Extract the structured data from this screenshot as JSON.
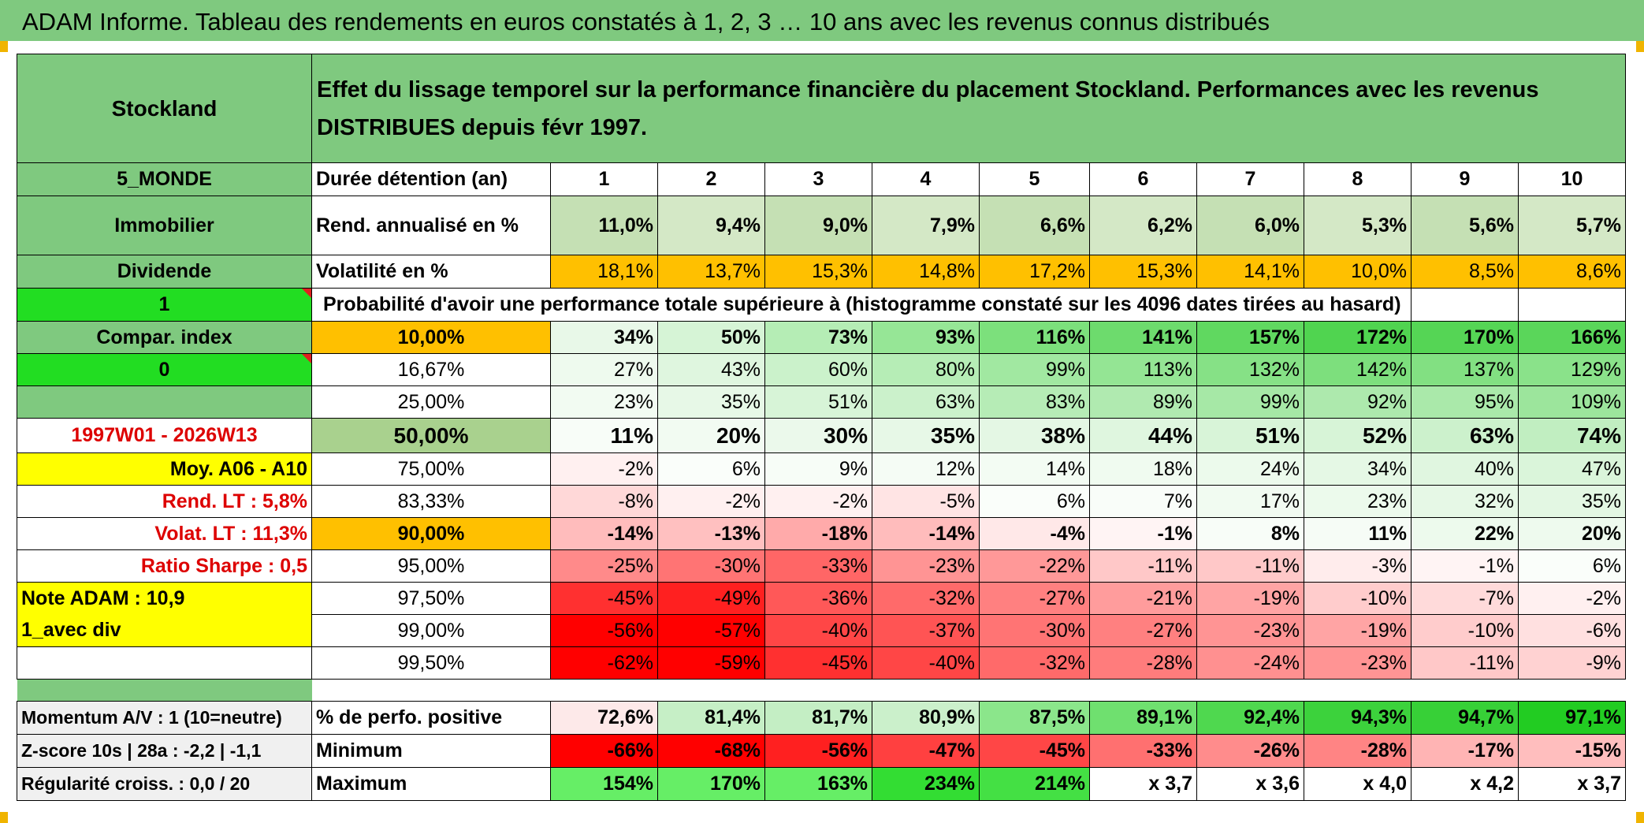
{
  "title": "ADAM Informe. Tableau des rendements en euros constatés à 1, 2, 3 … 10 ans avec les revenus connus distribués",
  "left_labels": {
    "fund": "Stockland",
    "region": "5_MONDE",
    "sector": "Immobilier",
    "type": "Dividende",
    "flag1": "1",
    "compar": "Compar. index",
    "flag0": "0",
    "period": "1997W01 - 2026W13",
    "moy": "Moy. A06 - A10",
    "rend_lt": "Rend. LT :   5,8%",
    "volat_lt": "Volat. LT :   11,3%",
    "sharpe": "Ratio Sharpe :   0,5",
    "note": "Note ADAM : 10,9",
    "avec_div": "1_avec div",
    "momentum": "Momentum A/V : 1 (10=neutre)",
    "zscore": "Z-score 10s | 28a : -2,2 | -1,1",
    "regularite": "Régularité croiss. : 0,0 / 20"
  },
  "header_text": "Effet du lissage temporel sur la performance financière du placement Stockland. Performances avec les revenus DISTRIBUES depuis févr 1997.",
  "row_labels": {
    "duree": "Durée détention (an)",
    "rend": "Rend. annualisé en %",
    "volat": "Volatilité en %",
    "proba": "Probabilité d'avoir une performance totale supérieure à (histogramme constaté sur les 4096 dates tirées au hasard)",
    "pos": "% de perfo. positive",
    "min": "Minimum",
    "max": "Maximum"
  },
  "years": [
    "1",
    "2",
    "3",
    "4",
    "5",
    "6",
    "7",
    "8",
    "9",
    "10"
  ],
  "rend": [
    "11,0%",
    "9,4%",
    "9,0%",
    "7,9%",
    "6,6%",
    "6,2%",
    "6,0%",
    "5,3%",
    "5,6%",
    "5,7%"
  ],
  "volat": [
    "18,1%",
    "13,7%",
    "15,3%",
    "14,8%",
    "17,2%",
    "15,3%",
    "14,1%",
    "10,0%",
    "8,5%",
    "8,6%"
  ],
  "volat_colors": [
    "#ffc000",
    "#ffc000",
    "#ffc000",
    "#ffc000",
    "#ffc000",
    "#ffc000",
    "#ffc000",
    "#ffc000",
    "#ffc000",
    "#ffc000"
  ],
  "prob_rows": [
    {
      "pct": "10,00%",
      "bold": true,
      "label_bg": "#ffc000",
      "values": [
        "34%",
        "50%",
        "73%",
        "93%",
        "116%",
        "141%",
        "157%",
        "172%",
        "170%",
        "166%"
      ],
      "colors": [
        "#e8f8e8",
        "#d6f4d6",
        "#b5edb5",
        "#96e696",
        "#7ce07c",
        "#6ddb6d",
        "#60d860",
        "#50d450",
        "#55d555",
        "#5ad65a"
      ]
    },
    {
      "pct": "16,67%",
      "bold": false,
      "label_bg": "#ffffff",
      "values": [
        "27%",
        "43%",
        "60%",
        "80%",
        "99%",
        "113%",
        "132%",
        "142%",
        "137%",
        "129%"
      ],
      "colors": [
        "#eefaee",
        "#dff6df",
        "#cbf2cb",
        "#b6edb6",
        "#a1e8a1",
        "#94e594",
        "#86e186",
        "#7ddf7d",
        "#82e082",
        "#8ae28a"
      ]
    },
    {
      "pct": "25,00%",
      "bold": false,
      "label_bg": "#ffffff",
      "values": [
        "23%",
        "35%",
        "51%",
        "63%",
        "83%",
        "89%",
        "99%",
        "92%",
        "95%",
        "109%"
      ],
      "colors": [
        "#f2fbf2",
        "#e7f8e7",
        "#d7f4d7",
        "#cbf1cb",
        "#b6ecb6",
        "#b0eab0",
        "#a6e8a6",
        "#ade9ad",
        "#aae9aa",
        "#9ce59c"
      ]
    },
    {
      "pct": "50,00%",
      "bold": true,
      "big": true,
      "label_bg": "#a9d18e",
      "values": [
        "11%",
        "20%",
        "30%",
        "35%",
        "38%",
        "44%",
        "51%",
        "52%",
        "63%",
        "74%"
      ],
      "colors": [
        "#f8fdf8",
        "#f2fbf2",
        "#ebf9eb",
        "#e7f8e7",
        "#e4f7e4",
        "#dff6df",
        "#d8f4d8",
        "#d7f4d7",
        "#ccf1cc",
        "#c1eec1"
      ]
    },
    {
      "pct": "75,00%",
      "bold": false,
      "label_bg": "#ffffff",
      "values": [
        "-2%",
        "6%",
        "9%",
        "12%",
        "14%",
        "18%",
        "24%",
        "34%",
        "40%",
        "47%"
      ],
      "colors": [
        "#fff0f0",
        "#fafefa",
        "#f7fdf7",
        "#f5fcf5",
        "#f3fcf3",
        "#f0fbf0",
        "#ecfaec",
        "#e5f8e5",
        "#e0f6e0",
        "#daf5da"
      ]
    },
    {
      "pct": "83,33%",
      "bold": false,
      "label_bg": "#ffffff",
      "values": [
        "-8%",
        "-2%",
        "-2%",
        "-5%",
        "6%",
        "7%",
        "17%",
        "23%",
        "32%",
        "35%"
      ],
      "colors": [
        "#ffd8d8",
        "#fff0f0",
        "#fff0f0",
        "#ffe4e4",
        "#fafefa",
        "#f9fdf9",
        "#f1fbf1",
        "#ecfaec",
        "#e6f8e6",
        "#e3f7e3"
      ]
    },
    {
      "pct": "90,00%",
      "bold": true,
      "label_bg": "#ffc000",
      "values": [
        "-14%",
        "-13%",
        "-18%",
        "-14%",
        "-4%",
        "-1%",
        "8%",
        "11%",
        "22%",
        "20%"
      ],
      "colors": [
        "#ffbcbc",
        "#ffc0c0",
        "#ffaaaa",
        "#ffbcbc",
        "#ffe8e8",
        "#fff4f4",
        "#f8fdf8",
        "#f6fcf6",
        "#edfaed",
        "#eefaee"
      ]
    },
    {
      "pct": "95,00%",
      "bold": false,
      "label_bg": "#ffffff",
      "values": [
        "-25%",
        "-30%",
        "-33%",
        "-23%",
        "-22%",
        "-11%",
        "-11%",
        "-3%",
        "-1%",
        "6%"
      ],
      "colors": [
        "#ff8a8a",
        "#ff7474",
        "#ff6666",
        "#ff9494",
        "#ff9898",
        "#ffc8c8",
        "#ffc8c8",
        "#ffecec",
        "#fff4f4",
        "#fafefa"
      ]
    },
    {
      "pct": "97,50%",
      "bold": false,
      "label_bg": "#ffffff",
      "values": [
        "-45%",
        "-49%",
        "-36%",
        "-32%",
        "-27%",
        "-21%",
        "-19%",
        "-10%",
        "-7%",
        "-2%"
      ],
      "colors": [
        "#ff3030",
        "#ff2020",
        "#ff5858",
        "#ff6a6a",
        "#ff8080",
        "#ff9c9c",
        "#ffa4a4",
        "#ffcccc",
        "#ffdada",
        "#fff0f0"
      ]
    },
    {
      "pct": "99,00%",
      "bold": false,
      "label_bg": "#ffffff",
      "values": [
        "-56%",
        "-57%",
        "-40%",
        "-37%",
        "-30%",
        "-27%",
        "-23%",
        "-19%",
        "-10%",
        "-6%"
      ],
      "colors": [
        "#ff0000",
        "#ff0000",
        "#ff4646",
        "#ff5454",
        "#ff7474",
        "#ff8080",
        "#ff9494",
        "#ffa4a4",
        "#ffcccc",
        "#ffe0e0"
      ]
    },
    {
      "pct": "99,50%",
      "bold": false,
      "label_bg": "#ffffff",
      "values": [
        "-62%",
        "-59%",
        "-45%",
        "-40%",
        "-32%",
        "-28%",
        "-24%",
        "-23%",
        "-11%",
        "-9%"
      ],
      "colors": [
        "#ff0000",
        "#ff0000",
        "#ff3030",
        "#ff4646",
        "#ff6a6a",
        "#ff7c7c",
        "#ff9090",
        "#ff9494",
        "#ffc8c8",
        "#ffd2d2"
      ]
    }
  ],
  "pos": [
    "72,6%",
    "81,4%",
    "81,7%",
    "80,9%",
    "87,5%",
    "89,1%",
    "92,4%",
    "94,3%",
    "94,7%",
    "97,1%"
  ],
  "pos_colors": [
    "#fde9e9",
    "#c6efc6",
    "#c4eec4",
    "#cbf0cb",
    "#8be68b",
    "#6fe06f",
    "#4fd84f",
    "#3cd23c",
    "#37d037",
    "#22cc22"
  ],
  "min": [
    "-66%",
    "-68%",
    "-56%",
    "-47%",
    "-45%",
    "-33%",
    "-26%",
    "-28%",
    "-17%",
    "-15%"
  ],
  "min_colors": [
    "#ff0000",
    "#ff0000",
    "#ff2020",
    "#ff4040",
    "#ff4646",
    "#ff7070",
    "#ff8c8c",
    "#ff8484",
    "#ffb4b4",
    "#ffbebe"
  ],
  "max": [
    "154%",
    "170%",
    "163%",
    "234%",
    "214%",
    "x 3,7",
    "x 3,6",
    "x 4,0",
    "x 4,2",
    "x 3,7"
  ],
  "max_colors": [
    "#66ee66",
    "#66ee66",
    "#66ee66",
    "#33dd33",
    "#44e044",
    "#ffffff",
    "#ffffff",
    "#ffffff",
    "#ffffff",
    "#ffffff"
  ]
}
